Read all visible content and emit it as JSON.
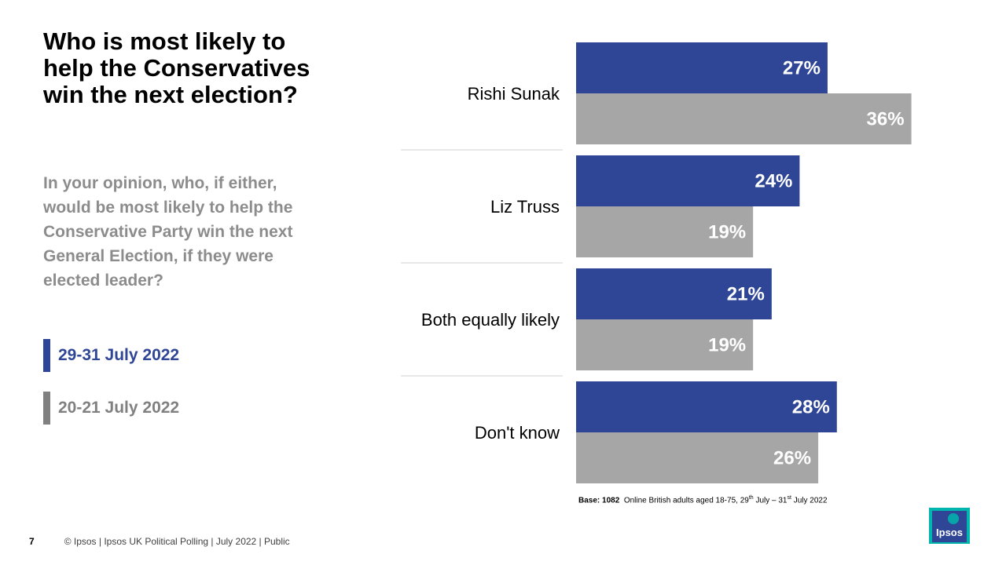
{
  "slide": {
    "title": "Who is most likely to help the Conservatives win the next election?",
    "question": "In your opinion, who, if either, would be most likely to help the Conservative Party win the next General Election, if they were elected leader?",
    "page_number": "7",
    "footer": "© Ipsos |  Ipsos UK Political Polling | July 2022 | Public",
    "logo_text": "Ipsos"
  },
  "base_note": {
    "label": "Base: 1082",
    "text_before": "Online British adults aged 18-75, 29",
    "sup1": "th",
    "text_middle": " July – 31",
    "sup2": "st",
    "text_after": " July 2022"
  },
  "legend": [
    {
      "label": "29-31 July 2022",
      "color": "#2f4596",
      "text_color": "#2f4596"
    },
    {
      "label": "20-21 July 2022",
      "color": "#808080",
      "text_color": "#808080"
    }
  ],
  "chart_data": {
    "type": "bar",
    "orientation": "horizontal",
    "title": "Who is most likely to help the Conservatives win the next election?",
    "categories": [
      "Rishi Sunak",
      "Liz Truss",
      "Both equally likely",
      "Don't know"
    ],
    "series": [
      {
        "name": "29-31 July 2022",
        "color": "#2f4596",
        "values": [
          27,
          24,
          21,
          28
        ]
      },
      {
        "name": "20-21 July 2022",
        "color": "#a6a6a6",
        "values": [
          36,
          19,
          19,
          26
        ]
      }
    ],
    "value_suffix": "%",
    "xlim": [
      0,
      40
    ],
    "grid": false
  }
}
